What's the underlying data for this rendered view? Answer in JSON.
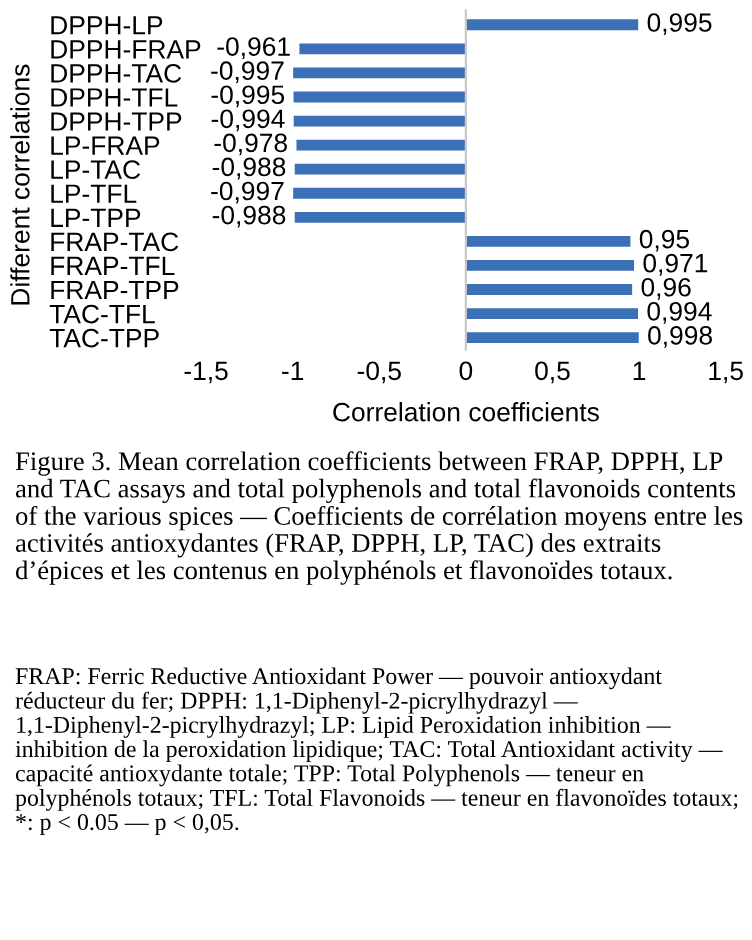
{
  "chart_data": {
    "type": "bar",
    "orientation": "horizontal",
    "categories": [
      "DPPH-LP",
      "DPPH-FRAP",
      "DPPH-TAC",
      "DPPH-TFL",
      "DPPH-TPP",
      "LP-FRAP",
      "LP-TAC",
      "LP-TFL",
      "LP-TPP",
      "FRAP-TAC",
      "FRAP-TFL",
      "FRAP-TPP",
      "TAC-TFL",
      "TAC-TPP"
    ],
    "values": [
      0.995,
      -0.961,
      -0.997,
      -0.995,
      -0.994,
      -0.978,
      -0.988,
      -0.997,
      -0.988,
      0.95,
      0.971,
      0.96,
      0.994,
      0.998
    ],
    "value_labels": [
      "0,995",
      "-0,961",
      "-0,997",
      "-0,995",
      "-0,994",
      "-0,978",
      "-0,988",
      "-0,997",
      "-0,988",
      "0,95",
      "0,971",
      "0,96",
      "0,994",
      "0,998"
    ],
    "color": "#3b70b6",
    "xlim": [
      -1.5,
      1.5
    ],
    "xticks": [
      {
        "value": -1.5,
        "label": "-1,5"
      },
      {
        "value": -1,
        "label": "-1"
      },
      {
        "value": -0.5,
        "label": "-0,5"
      },
      0,
      {
        "value": 0.5,
        "label": "0,5"
      },
      1,
      {
        "value": 1.5,
        "label": "1,5"
      }
    ],
    "xlabel": "Correlation coefficients",
    "ylabel": "Different correlations",
    "annotations": [
      "Figure 3. Mean correlation coefficients between FRAP, DPPH, LP and TAC assays and total polyphenols and total flavonoids contents of the various spices — Coefficients de corrélation moyens entre les activités antioxydantes (FRAP, DPPH, LP, TAC) des extraits d’épices et les contenus en polyphénols et flavonoïdes totaux.",
      "FRAP: Ferric Reductive Antioxidant Power — pouvoir antioxydant réducteur du fer; DPPH: 1,1-Diphenyl-2-picrylhydrazyl — 1,1-Diphenyl-2-picrylhydrazyl; LP: Lipid Peroxidation inhibition — inhibition de la peroxidation lipidique; TAC: Total Antioxidant activity — capacité antioxydante totale; TPP: Total Polyphenols — teneur en polyphénols totaux; TFL: Total Flavonoids — teneur en flavonoïdes totaux; *: p < 0.05 — p < 0,05."
    ]
  }
}
